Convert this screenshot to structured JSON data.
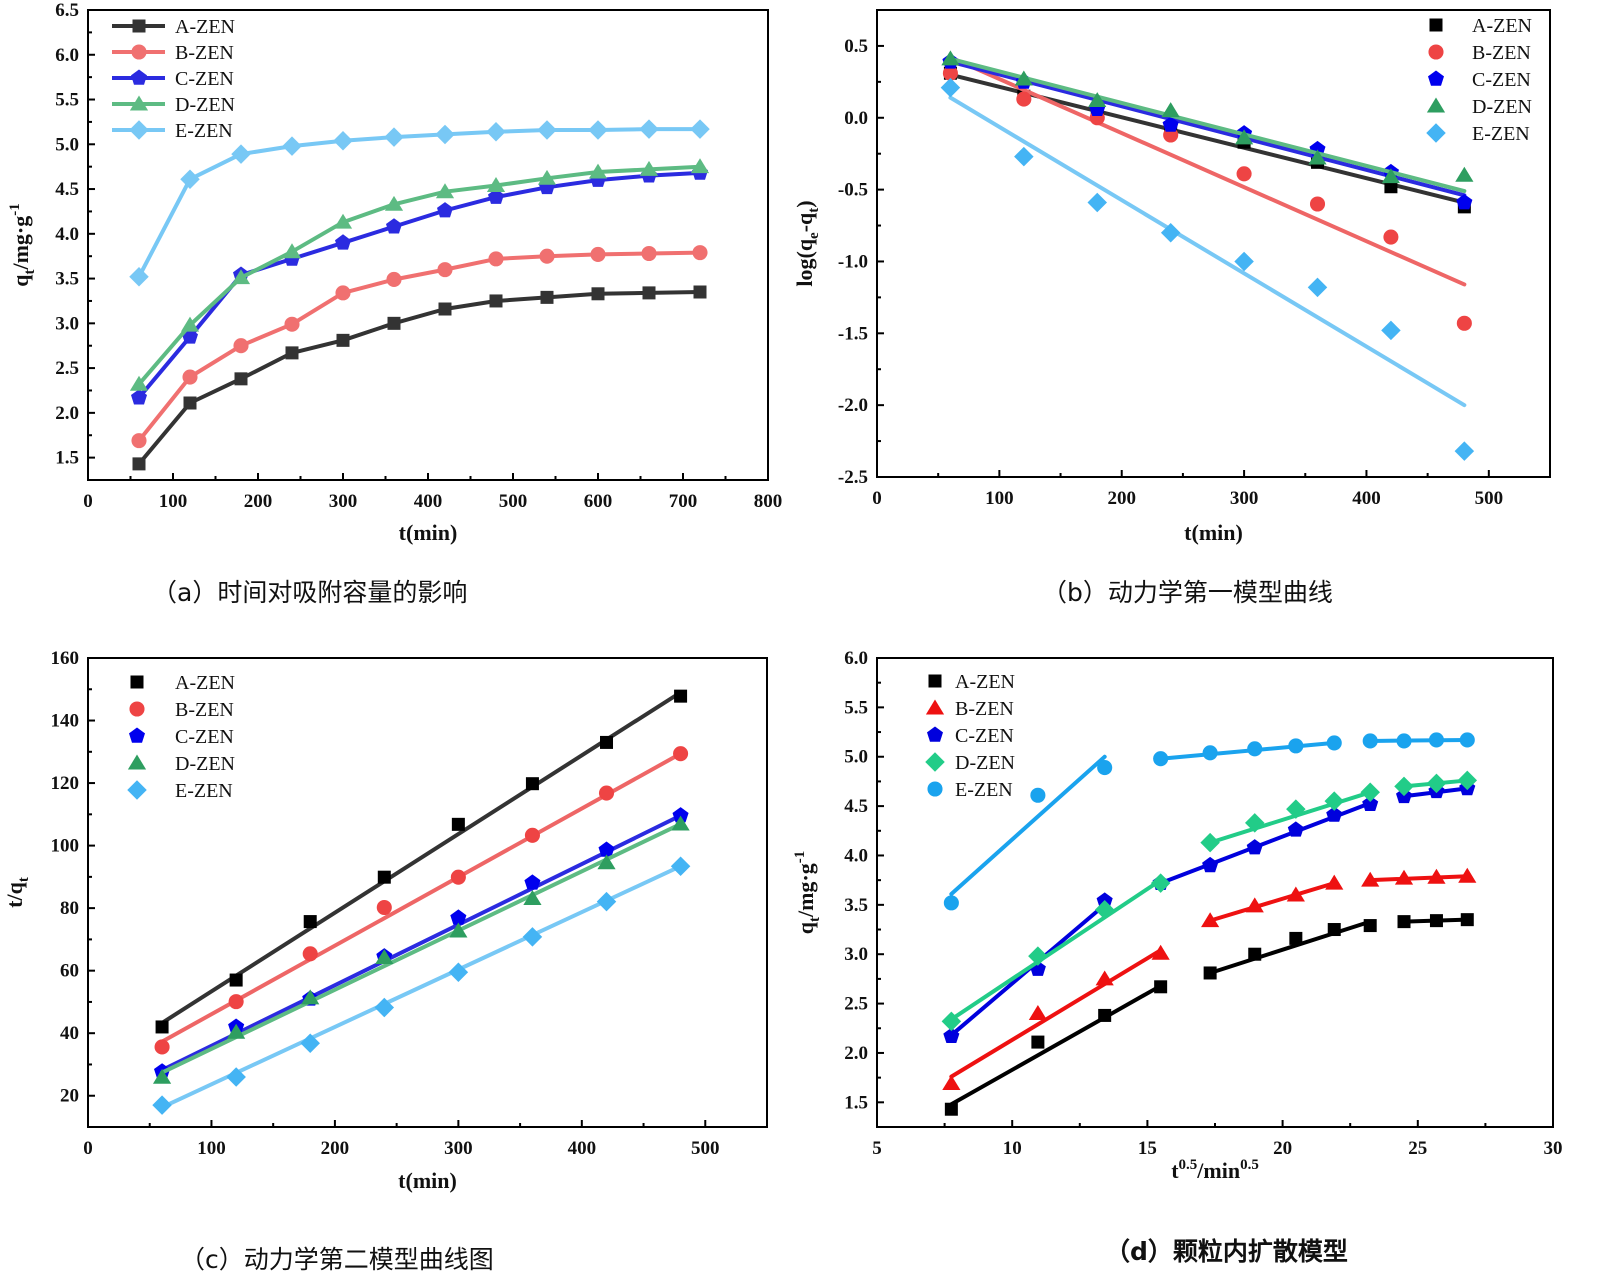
{
  "figure": {
    "captions": {
      "a": "（a）时间对吸附容量的影响",
      "b": "（b）动力学第一模型曲线",
      "c": "（c）动力学第二模型曲线图",
      "d": "（d）颗粒内扩散模型"
    }
  },
  "chart_data": [
    {
      "id": "a",
      "type": "line",
      "title": "",
      "xlabel": "t(min)",
      "ylabel": "qt/mg·g-1",
      "ylabel_parts": {
        "main": "q",
        "sub": "t",
        "rest": "/mg·g",
        "sup": "-1"
      },
      "xlim": [
        0,
        800
      ],
      "ylim": [
        1.25,
        6.5
      ],
      "xticks": [
        0,
        100,
        200,
        300,
        400,
        500,
        600,
        700,
        800
      ],
      "yticks": [
        1.5,
        2.0,
        2.5,
        3.0,
        3.5,
        4.0,
        4.5,
        5.0,
        5.5,
        6.0,
        6.5
      ],
      "ytick_labels": [
        "1.5",
        "2.0",
        "2.5",
        "3.0",
        "3.5",
        "4.0",
        "4.5",
        "5.0",
        "5.5",
        "6.0",
        "6.5"
      ],
      "legend_position": "top-left",
      "legend_style": "line-marker",
      "x": [
        60,
        120,
        180,
        240,
        300,
        360,
        420,
        480,
        540,
        600,
        660,
        720
      ],
      "series": [
        {
          "name": "A-ZEN",
          "color": "#333333",
          "marker": "square",
          "values": [
            1.43,
            2.11,
            2.38,
            2.67,
            2.81,
            3.0,
            3.16,
            3.25,
            3.29,
            3.33,
            3.34,
            3.35
          ]
        },
        {
          "name": "B-ZEN",
          "color": "#F07070",
          "marker": "circle",
          "values": [
            1.69,
            2.4,
            2.75,
            2.99,
            3.34,
            3.49,
            3.6,
            3.72,
            3.75,
            3.77,
            3.78,
            3.79
          ]
        },
        {
          "name": "C-ZEN",
          "color": "#2B2BE0",
          "marker": "pentagon",
          "values": [
            2.17,
            2.85,
            3.54,
            3.72,
            3.9,
            4.08,
            4.26,
            4.41,
            4.52,
            4.6,
            4.65,
            4.68
          ]
        },
        {
          "name": "D-ZEN",
          "color": "#5DBB83",
          "marker": "triangle",
          "values": [
            2.32,
            2.98,
            3.51,
            3.8,
            4.13,
            4.33,
            4.47,
            4.54,
            4.62,
            4.69,
            4.72,
            4.75
          ]
        },
        {
          "name": "E-ZEN",
          "color": "#78C8F5",
          "marker": "diamond",
          "values": [
            3.52,
            4.61,
            4.89,
            4.98,
            5.04,
            5.08,
            5.11,
            5.14,
            5.16,
            5.16,
            5.17,
            5.17
          ]
        }
      ]
    },
    {
      "id": "b",
      "type": "scatter",
      "title": "",
      "xlabel": "t(min)",
      "ylabel": "log(qe-qt)",
      "ylabel_parts": {
        "pre": "log(q",
        "sub1": "e",
        "mid": "-q",
        "sub2": "t",
        "post": ")"
      },
      "xlim": [
        0,
        550
      ],
      "ylim": [
        -2.5,
        0.75
      ],
      "xticks": [
        0,
        100,
        200,
        300,
        400,
        500
      ],
      "yticks": [
        -2.5,
        -2.0,
        -1.5,
        -1.0,
        -0.5,
        0.0,
        0.5
      ],
      "ytick_labels": [
        "-2.5",
        "-2.0",
        "-1.5",
        "-1.0",
        "-0.5",
        "0.0",
        "0.5"
      ],
      "legend_position": "top-right",
      "legend_style": "marker",
      "x": [
        60,
        120,
        180,
        240,
        300,
        360,
        420,
        480
      ],
      "series": [
        {
          "name": "A-ZEN",
          "color": "#000000",
          "line_color": "#333333",
          "marker": "square",
          "values": [
            0.31,
            0.15,
            0.05,
            -0.07,
            -0.17,
            -0.31,
            -0.48,
            -0.62
          ],
          "fit": [
            [
              60,
              0.3
            ],
            [
              480,
              -0.59
            ]
          ]
        },
        {
          "name": "B-ZEN",
          "color": "#EE4444",
          "line_color": "#EE6666",
          "marker": "circle",
          "values": [
            0.31,
            0.13,
            0.0,
            -0.12,
            -0.39,
            -0.6,
            -0.83,
            -1.43
          ],
          "fit": [
            [
              60,
              0.42
            ],
            [
              480,
              -1.16
            ]
          ]
        },
        {
          "name": "C-ZEN",
          "color": "#0000EE",
          "line_color": "#2B2BE0",
          "marker": "pentagon",
          "values": [
            0.39,
            0.25,
            0.06,
            -0.05,
            -0.11,
            -0.22,
            -0.38,
            -0.59
          ],
          "fit": [
            [
              60,
              0.39
            ],
            [
              480,
              -0.54
            ]
          ]
        },
        {
          "name": "D-ZEN",
          "color": "#2E9E60",
          "line_color": "#5DBB83",
          "marker": "triangle",
          "values": [
            0.41,
            0.27,
            0.12,
            0.05,
            -0.14,
            -0.28,
            -0.41,
            -0.4
          ],
          "fit": [
            [
              60,
              0.41
            ],
            [
              480,
              -0.51
            ]
          ]
        },
        {
          "name": "E-ZEN",
          "color": "#44B4F4",
          "line_color": "#78C8F5",
          "marker": "diamond",
          "values": [
            0.21,
            -0.27,
            -0.59,
            -0.8,
            -1.0,
            -1.18,
            -1.48,
            -2.32
          ],
          "fit": [
            [
              60,
              0.14
            ],
            [
              480,
              -2.0
            ]
          ]
        }
      ]
    },
    {
      "id": "c",
      "type": "scatter",
      "title": "",
      "xlabel": "t(min)",
      "ylabel": "t/qt",
      "ylabel_parts": {
        "main": "t/q",
        "sub": "t"
      },
      "xlim": [
        0,
        550
      ],
      "ylim": [
        10,
        160
      ],
      "xticks": [
        0,
        100,
        200,
        300,
        400,
        500
      ],
      "yticks": [
        20,
        40,
        60,
        80,
        100,
        120,
        140,
        160
      ],
      "ytick_labels": [
        "20",
        "40",
        "60",
        "80",
        "100",
        "120",
        "140",
        "160"
      ],
      "legend_position": "top-left",
      "legend_style": "marker",
      "x": [
        60,
        120,
        180,
        240,
        300,
        360,
        420,
        480
      ],
      "series": [
        {
          "name": "A-ZEN",
          "color": "#000000",
          "line_color": "#333333",
          "marker": "square",
          "values": [
            42.0,
            57.0,
            75.7,
            89.9,
            106.8,
            119.8,
            133.0,
            147.8
          ],
          "fit": [
            [
              60,
              43.3
            ],
            [
              480,
              149.0
            ]
          ]
        },
        {
          "name": "B-ZEN",
          "color": "#EE4444",
          "line_color": "#EE6666",
          "marker": "circle",
          "values": [
            35.6,
            50.1,
            65.4,
            80.2,
            89.9,
            103.3,
            116.8,
            129.4
          ],
          "fit": [
            [
              60,
              37.3
            ],
            [
              480,
              129.4
            ]
          ]
        },
        {
          "name": "C-ZEN",
          "color": "#0000EE",
          "line_color": "#2B2BE0",
          "marker": "pentagon",
          "values": [
            27.7,
            42.0,
            51.0,
            64.5,
            76.9,
            88.1,
            98.6,
            109.6
          ],
          "fit": [
            [
              60,
              28.2
            ],
            [
              480,
              109.6
            ]
          ]
        },
        {
          "name": "D-ZEN",
          "color": "#2E9E60",
          "line_color": "#5DBB83",
          "marker": "triangle",
          "values": [
            25.9,
            40.3,
            51.3,
            64.2,
            72.7,
            83.1,
            94.5,
            106.9
          ],
          "fit": [
            [
              60,
              27.4
            ],
            [
              480,
              106.9
            ]
          ]
        },
        {
          "name": "E-ZEN",
          "color": "#44B4F4",
          "line_color": "#78C8F5",
          "marker": "diamond",
          "values": [
            17.0,
            26.0,
            36.8,
            48.2,
            59.5,
            70.8,
            82.1,
            93.4
          ],
          "fit": [
            [
              60,
              16.3
            ],
            [
              480,
              93.4
            ]
          ]
        }
      ]
    },
    {
      "id": "d",
      "type": "scatter",
      "title": "",
      "xlabel": "t0.5/min0.5",
      "xlabel_parts": {
        "a": "t",
        "a_sup": "0.5",
        "b": "/min",
        "b_sup": "0.5"
      },
      "ylabel": "qt/mg·g-1",
      "ylabel_parts": {
        "main": "q",
        "sub": "t",
        "rest": "/mg·g",
        "sup": "-1"
      },
      "xlim": [
        5,
        30
      ],
      "ylim": [
        1.25,
        6.0
      ],
      "xticks": [
        5,
        10,
        15,
        20,
        25,
        30
      ],
      "yticks": [
        1.5,
        2.0,
        2.5,
        3.0,
        3.5,
        4.0,
        4.5,
        5.0,
        5.5,
        6.0
      ],
      "ytick_labels": [
        "1.5",
        "2.0",
        "2.5",
        "3.0",
        "3.5",
        "4.0",
        "4.5",
        "5.0",
        "5.5",
        "6.0"
      ],
      "legend_position": "top-left",
      "legend_style": "marker",
      "x": [
        7.75,
        10.95,
        13.42,
        15.49,
        17.32,
        18.97,
        20.49,
        21.91,
        23.24,
        24.49,
        25.69,
        26.83
      ],
      "series": [
        {
          "name": "A-ZEN",
          "color": "#000000",
          "marker": "square",
          "values": [
            1.43,
            2.11,
            2.38,
            2.67,
            2.81,
            3.0,
            3.16,
            3.25,
            3.29,
            3.33,
            3.34,
            3.35
          ],
          "fits": [
            [
              [
                7.75,
                1.48
              ],
              [
                15.49,
                2.68
              ]
            ],
            [
              [
                17.32,
                2.81
              ],
              [
                23.24,
                3.33
              ]
            ],
            [
              [
                24.49,
                3.33
              ],
              [
                26.83,
                3.35
              ]
            ]
          ]
        },
        {
          "name": "B-ZEN",
          "color": "#EE1111",
          "marker": "triangle",
          "values": [
            1.69,
            2.4,
            2.75,
            3.01,
            3.34,
            3.49,
            3.6,
            3.72,
            3.75,
            3.77,
            3.78,
            3.79
          ],
          "fits": [
            [
              [
                7.75,
                1.76
              ],
              [
                15.49,
                3.04
              ]
            ],
            [
              [
                17.32,
                3.34
              ],
              [
                21.91,
                3.72
              ]
            ],
            [
              [
                23.24,
                3.75
              ],
              [
                26.83,
                3.79
              ]
            ]
          ]
        },
        {
          "name": "C-ZEN",
          "color": "#0000DD",
          "marker": "pentagon",
          "values": [
            2.17,
            2.85,
            3.54,
            3.72,
            3.9,
            4.08,
            4.26,
            4.41,
            4.52,
            4.6,
            4.65,
            4.68
          ],
          "fits": [
            [
              [
                7.75,
                2.18
              ],
              [
                13.42,
                3.5
              ]
            ],
            [
              [
                15.49,
                3.72
              ],
              [
                23.24,
                4.53
              ]
            ],
            [
              [
                24.49,
                4.6
              ],
              [
                26.83,
                4.68
              ]
            ]
          ]
        },
        {
          "name": "D-ZEN",
          "color": "#22CC88",
          "marker": "diamond",
          "values": [
            2.32,
            2.98,
            3.45,
            3.72,
            4.13,
            4.33,
            4.47,
            4.55,
            4.64,
            4.7,
            4.73,
            4.76
          ],
          "fits": [
            [
              [
                7.75,
                2.34
              ],
              [
                15.49,
                3.75
              ]
            ],
            [
              [
                17.32,
                4.13
              ],
              [
                23.24,
                4.64
              ]
            ],
            [
              [
                24.49,
                4.7
              ],
              [
                26.83,
                4.76
              ]
            ]
          ]
        },
        {
          "name": "E-ZEN",
          "color": "#1AA3EE",
          "marker": "circle",
          "values": [
            3.52,
            4.61,
            4.89,
            4.98,
            5.04,
            5.08,
            5.11,
            5.14,
            5.16,
            5.16,
            5.17,
            5.17
          ],
          "fits": [
            [
              [
                7.75,
                3.61
              ],
              [
                13.42,
                5.0
              ]
            ],
            [
              [
                15.49,
                4.98
              ],
              [
                21.91,
                5.14
              ]
            ],
            [
              [
                23.24,
                5.16
              ],
              [
                26.83,
                5.17
              ]
            ]
          ]
        }
      ]
    }
  ]
}
